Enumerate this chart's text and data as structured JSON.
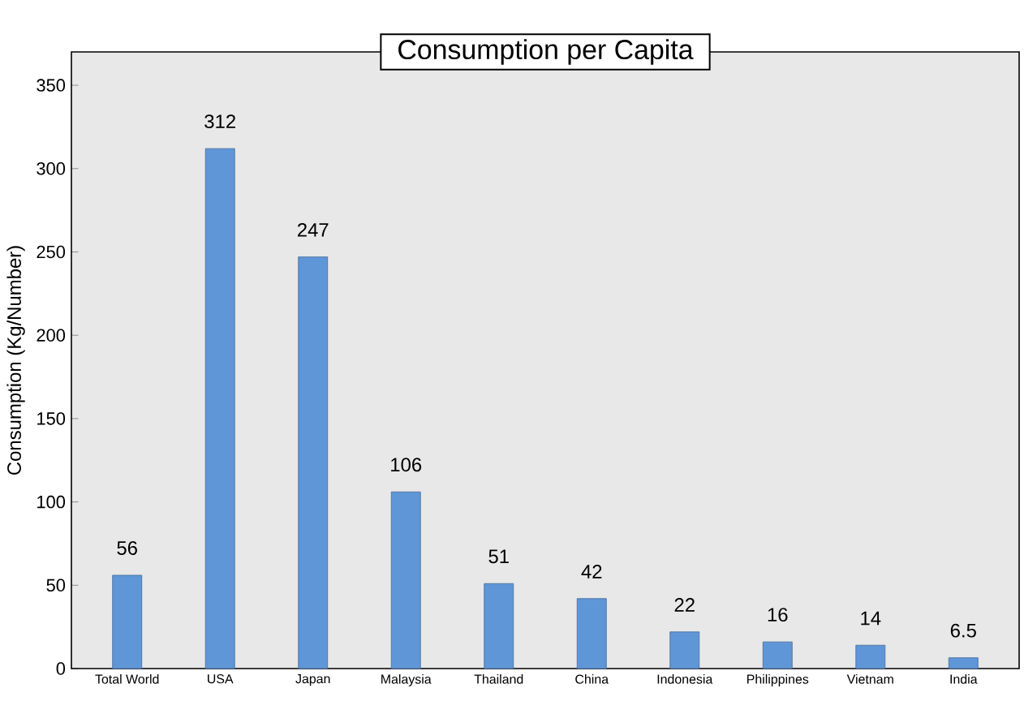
{
  "chart_data": {
    "type": "bar",
    "title": "Consumption per Capita",
    "ylabel": "Consumption (Kg/Number)",
    "categories": [
      "Total World",
      "USA",
      "Japan",
      "Malaysia",
      "Thailand",
      "China",
      "Indonesia",
      "Philippines",
      "Vietnam",
      "India"
    ],
    "values": [
      56,
      312,
      247,
      106,
      51,
      42,
      22,
      16,
      14,
      6.5
    ],
    "color": "#5f96d8",
    "ylim": [
      0,
      370
    ],
    "yticks": [
      0,
      50,
      100,
      150,
      200,
      250,
      300,
      350
    ],
    "data_labels": true,
    "grid": false
  }
}
